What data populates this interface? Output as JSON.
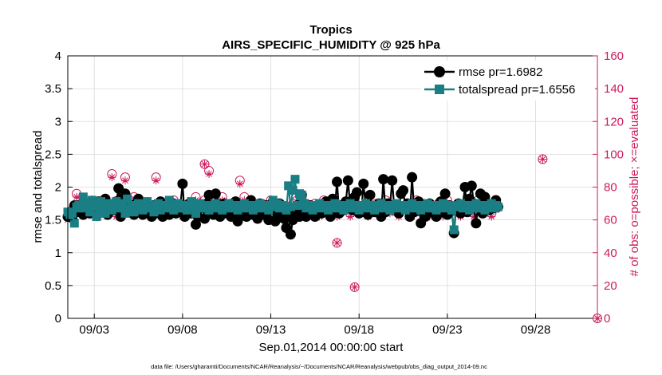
{
  "chart_data": {
    "type": "line",
    "title_line1": "Tropics",
    "title_line2": "AIRS_SPECIFIC_HUMIDITY @ 925 hPa",
    "xlabel": "Sep.01,2014 00:00:00 start",
    "ylabel_left": "rmse and totalspread",
    "ylabel_right": "# of obs: o=possible; ×=evaluated",
    "footer": "data file: /Users/gharamti/Documents/NCAR/Reanalysis/~/Documents/NCAR/Reanalysis/webpub/obs_diag_output_2014-09.nc",
    "x_unit": "day of September 2014",
    "xlim": [
      1.5,
      31.5
    ],
    "ylim_left": [
      0,
      4
    ],
    "ylim_right": [
      0,
      160
    ],
    "yticks_left": [
      0,
      0.5,
      1,
      1.5,
      2,
      2.5,
      3,
      3.5,
      4
    ],
    "yticks_left_labels": [
      "0",
      "0.5",
      "1",
      "1.5",
      "2",
      "2.5",
      "3",
      "3.5",
      "4"
    ],
    "yticks_right": [
      0,
      20,
      40,
      60,
      80,
      100,
      120,
      140,
      160
    ],
    "yticks_right_labels": [
      "0",
      "20",
      "40",
      "60",
      "80",
      "100",
      "120",
      "140",
      "160"
    ],
    "xticks": [
      3,
      8,
      13,
      18,
      23,
      28
    ],
    "xtick_labels": [
      "09/03",
      "09/08",
      "09/13",
      "09/18",
      "09/23",
      "09/28"
    ],
    "legend_location": "top-right",
    "colors": {
      "rmse": "#000000",
      "spread": "#1a7f84",
      "obs": "#cc1a5c",
      "axis": "#000000",
      "grid": "#d9d9d9"
    },
    "series": [
      {
        "name": "rmse",
        "label": "rmse pr=1.6982",
        "color": "#000000",
        "marker": "circle"
      },
      {
        "name": "totalspread",
        "label": "totalspread pr=1.6556",
        "color": "#1a7f84",
        "marker": "square"
      }
    ],
    "day_start": 1.5,
    "day_step": 0.125,
    "rmse_values": [
      1.55,
      1.55,
      1.53,
      1.72,
      1.62,
      1.72,
      1.68,
      1.58,
      1.75,
      1.62,
      1.6,
      1.79,
      1.65,
      1.7,
      1.78,
      1.65,
      1.72,
      1.82,
      1.58,
      1.7,
      1.65,
      1.65,
      1.78,
      1.98,
      1.55,
      1.82,
      1.9,
      1.65,
      1.72,
      1.68,
      1.58,
      1.75,
      1.82,
      1.78,
      1.58,
      1.75,
      1.7,
      1.62,
      1.55,
      1.72,
      1.6,
      1.72,
      1.78,
      1.55,
      1.65,
      1.72,
      1.58,
      1.62,
      1.75,
      1.6,
      1.7,
      1.72,
      2.05,
      1.55,
      1.6,
      1.75,
      1.6,
      1.65,
      1.43,
      1.55,
      1.68,
      1.72,
      1.52,
      1.75,
      1.88,
      1.65,
      1.58,
      1.9,
      1.75,
      1.55,
      1.65,
      1.75,
      1.6,
      1.72,
      1.55,
      1.6,
      1.78,
      1.48,
      1.65,
      1.6,
      1.72,
      1.55,
      1.65,
      1.8,
      1.58,
      1.68,
      1.52,
      1.75,
      1.62,
      1.58,
      1.72,
      1.5,
      1.65,
      1.78,
      1.48,
      1.55,
      1.75,
      1.62,
      1.52,
      1.38,
      1.6,
      1.28,
      1.5,
      1.6,
      1.72,
      1.55,
      1.88,
      1.62,
      1.55,
      1.68,
      1.72,
      1.6,
      1.55,
      1.7,
      1.65,
      1.6,
      1.72,
      1.78,
      1.62,
      1.55,
      1.82,
      1.68,
      2.08,
      1.6,
      1.72,
      1.65,
      1.78,
      2.1,
      1.7,
      1.65,
      1.85,
      1.92,
      1.6,
      1.62,
      2.05,
      1.72,
      1.58,
      1.88,
      1.7,
      1.62,
      1.68,
      1.75,
      1.55,
      2.12,
      1.62,
      1.75,
      1.7,
      2.1,
      1.65,
      1.72,
      1.6,
      1.9,
      1.95,
      1.68,
      1.75,
      1.55,
      2.15,
      1.62,
      1.65,
      1.78,
      1.45,
      1.7,
      1.55,
      1.68,
      1.75,
      1.62,
      1.65,
      1.55,
      1.7,
      1.78,
      1.62,
      1.9,
      1.58,
      1.72,
      1.65,
      1.3,
      1.68,
      1.75,
      1.6,
      1.72,
      2.0,
      1.62,
      1.82,
      2.02,
      1.75,
      1.45,
      1.72,
      1.9,
      1.6,
      1.85,
      1.7,
      1.65,
      1.72,
      1.68,
      1.8,
      1.7
    ],
    "spread_values": [
      1.62,
      1.58,
      1.6,
      1.45,
      1.7,
      1.72,
      1.68,
      1.85,
      1.75,
      1.7,
      1.62,
      1.8,
      1.72,
      1.55,
      1.65,
      1.78,
      1.7,
      1.6,
      1.75,
      1.68,
      1.65,
      1.72,
      1.78,
      1.68,
      1.7,
      1.75,
      1.6,
      1.82,
      1.65,
      1.72,
      1.62,
      1.7,
      1.75,
      1.7,
      1.65,
      1.72,
      1.78,
      1.68,
      1.7,
      1.62,
      1.72,
      1.75,
      1.65,
      1.7,
      1.72,
      1.68,
      1.8,
      1.7,
      1.65,
      1.72,
      1.75,
      1.68,
      1.7,
      1.72,
      1.65,
      1.7,
      1.78,
      1.72,
      1.6,
      1.7,
      1.75,
      1.68,
      1.72,
      1.7,
      1.65,
      1.7,
      1.72,
      1.75,
      1.68,
      1.7,
      1.65,
      1.72,
      1.7,
      1.75,
      1.68,
      1.72,
      1.7,
      1.65,
      1.72,
      1.7,
      1.75,
      1.68,
      1.72,
      1.7,
      1.65,
      1.72,
      1.7,
      1.75,
      1.68,
      1.72,
      1.7,
      1.65,
      1.72,
      1.8,
      1.7,
      1.75,
      1.68,
      1.72,
      1.7,
      1.65,
      2.02,
      1.7,
      1.95,
      2.12,
      1.72,
      1.9,
      1.88,
      1.75,
      1.68,
      1.72,
      1.7,
      1.65,
      1.72,
      1.7,
      1.75,
      1.68,
      1.72,
      1.7,
      1.65,
      1.72,
      1.7,
      1.75,
      1.68,
      1.72,
      1.7,
      1.65,
      1.72,
      1.7,
      1.75,
      1.68,
      1.72,
      1.7,
      1.65,
      1.72,
      1.7,
      1.75,
      1.68,
      1.72,
      1.7,
      1.65,
      1.72,
      1.7,
      1.75,
      1.68,
      1.72,
      1.7,
      1.65,
      1.72,
      1.7,
      1.75,
      1.68,
      1.72,
      1.7,
      1.65,
      1.72,
      1.7,
      1.75,
      1.68,
      1.72,
      1.7,
      1.65,
      1.72,
      1.7,
      1.75,
      1.68,
      1.72,
      1.7,
      1.65,
      1.72,
      1.7,
      1.75,
      1.68,
      1.72,
      1.7,
      1.65,
      1.35,
      1.72,
      1.7,
      1.75,
      1.68,
      1.72,
      1.7,
      1.65,
      1.72,
      1.7,
      1.75,
      1.68,
      1.72,
      1.7,
      1.65,
      1.72,
      1.7,
      1.75,
      1.68,
      1.72,
      1.7
    ],
    "obs_possible_values": [
      62,
      64,
      66,
      68,
      76,
      70,
      72,
      64,
      70,
      74,
      68,
      72,
      66,
      70,
      64,
      72,
      68,
      70,
      66,
      74,
      88,
      70,
      64,
      72,
      68,
      70,
      86,
      66,
      72,
      68,
      74,
      64,
      70,
      72,
      68,
      66,
      70,
      74,
      64,
      68,
      86,
      72,
      66,
      70,
      68,
      74,
      70,
      64,
      72,
      68,
      66,
      70,
      64,
      72,
      68,
      94,
      70,
      66,
      74,
      68,
      70,
      64,
      72,
      68,
      90,
      70,
      66,
      72,
      64,
      70,
      74,
      68,
      66,
      72,
      70,
      64,
      68,
      72,
      84,
      70,
      74,
      66,
      68,
      70,
      64,
      72,
      68,
      66,
      70,
      74,
      64,
      68,
      72,
      70,
      66,
      74,
      68,
      70,
      64,
      72,
      68,
      96,
      70,
      66,
      72,
      68,
      74,
      64,
      70,
      72,
      68,
      66,
      70,
      74,
      64,
      68,
      72,
      70,
      66,
      74,
      68,
      70,
      64,
      72,
      68,
      66,
      70,
      74,
      64,
      68,
      72,
      70,
      66,
      74,
      68,
      70,
      64,
      72,
      68,
      66,
      70,
      74,
      64,
      68,
      72,
      70,
      66,
      74,
      68,
      70,
      64,
      72,
      68,
      66,
      70,
      74,
      64,
      68,
      72,
      70,
      66,
      74,
      68,
      70,
      64,
      72,
      68,
      66,
      70,
      74,
      64,
      68,
      72,
      70,
      66,
      74,
      68,
      70,
      64,
      72,
      68,
      66,
      70,
      74,
      64,
      68,
      72,
      70,
      66,
      74,
      68,
      70,
      64,
      72,
      68,
      66
    ],
    "obs_evaluated_values": [
      60,
      62,
      64,
      66,
      74,
      68,
      70,
      62,
      68,
      72,
      66,
      70,
      64,
      68,
      62,
      70,
      66,
      68,
      64,
      72,
      86,
      68,
      62,
      70,
      66,
      68,
      84,
      64,
      70,
      66,
      72,
      62,
      68,
      70,
      66,
      64,
      68,
      72,
      62,
      66,
      84,
      70,
      64,
      68,
      66,
      72,
      68,
      62,
      70,
      66,
      64,
      68,
      62,
      70,
      66,
      92,
      68,
      64,
      72,
      66,
      68,
      62,
      70,
      66,
      88,
      68,
      64,
      70,
      62,
      68,
      72,
      66,
      64,
      70,
      68,
      62,
      66,
      70,
      82,
      68,
      72,
      64,
      66,
      68,
      62,
      70,
      66,
      64,
      68,
      72,
      62,
      66,
      70,
      68,
      64,
      72,
      66,
      68,
      62,
      70,
      66,
      94,
      68,
      64,
      70,
      66,
      72,
      62,
      68,
      70,
      66,
      64,
      68,
      72,
      62,
      66,
      70,
      68,
      64,
      72,
      66,
      68,
      62,
      70,
      66,
      64,
      68,
      72,
      62,
      66,
      70,
      68,
      64,
      72,
      66,
      68,
      62,
      70,
      66,
      64,
      68,
      72,
      62,
      66,
      70,
      68,
      64,
      72,
      66,
      68,
      62,
      70,
      66,
      64,
      68,
      72,
      62,
      66,
      70,
      68,
      64,
      72,
      66,
      68,
      62,
      70,
      66,
      64,
      68,
      72,
      62,
      66,
      70,
      68,
      64,
      72,
      66,
      68,
      62,
      70,
      66,
      64,
      68,
      72,
      62,
      66,
      70,
      68,
      64,
      72,
      66,
      68,
      62,
      70,
      66,
      64
    ],
    "obs_outliers": [
      {
        "day": 17.75,
        "possible": 19,
        "evaluated": 19
      },
      {
        "day": 31.5,
        "possible": 0,
        "evaluated": 0
      },
      {
        "day": 16.75,
        "possible": 46,
        "evaluated": 46
      },
      {
        "day": 28.4,
        "possible": 97,
        "evaluated": 97
      },
      {
        "day": 9.25,
        "possible": 94,
        "evaluated": 94
      }
    ]
  }
}
